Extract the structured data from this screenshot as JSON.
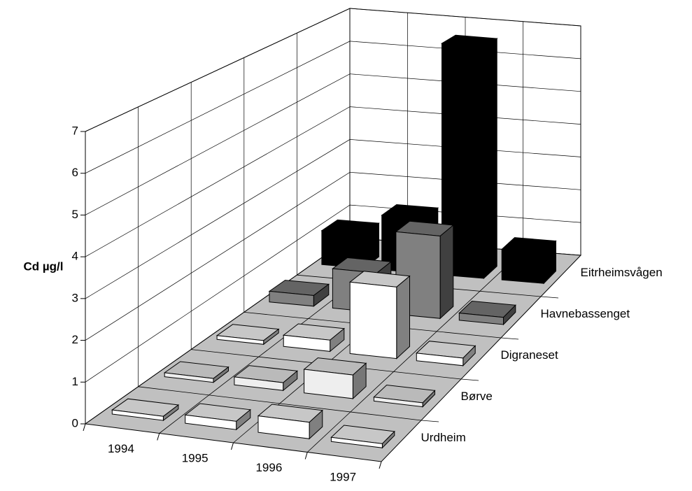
{
  "chart_data": {
    "type": "bar3d",
    "y_label": "Cd µg/l",
    "categories": [
      "1994",
      "1995",
      "1996",
      "1997"
    ],
    "series": [
      {
        "name": "Urdheim",
        "color": "#ffffff",
        "values": [
          0.1,
          0.2,
          0.4,
          0.1
        ]
      },
      {
        "name": "Børve",
        "color": "#eeeeee",
        "values": [
          0.1,
          0.2,
          0.6,
          0.1
        ]
      },
      {
        "name": "Digraneset",
        "color": "#ffffff",
        "values": [
          0.1,
          0.3,
          1.9,
          0.2
        ]
      },
      {
        "name": "Havnebassenget",
        "color": "#808080",
        "values": [
          0.3,
          1.1,
          2.3,
          0.2
        ]
      },
      {
        "name": "Eitrheimsvågen",
        "color": "#000000",
        "values": [
          1.0,
          1.6,
          6.8,
          0.9
        ]
      }
    ],
    "ylim": [
      0,
      7
    ],
    "yticks": [
      0,
      1,
      2,
      3,
      4,
      5,
      6,
      7
    ],
    "grid": true
  }
}
